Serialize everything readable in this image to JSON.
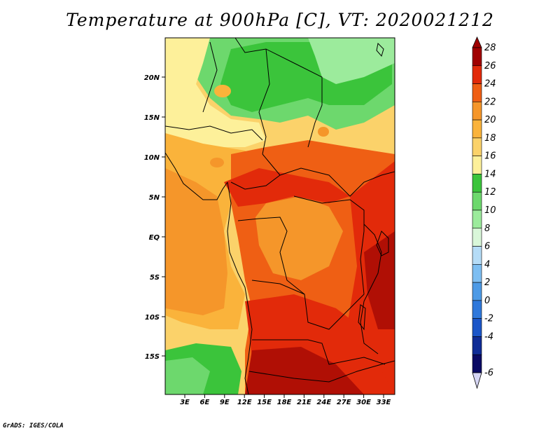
{
  "title": "Temperature at 900hPa [C], VT: 2020021212",
  "credit": "GrADS: IGES/COLA",
  "lat_labels": [
    "20N",
    "15N",
    "10N",
    "5N",
    "EQ",
    "5S",
    "10S",
    "15S"
  ],
  "lon_labels": [
    "3E",
    "6E",
    "9E",
    "12E",
    "15E",
    "18E",
    "21E",
    "24E",
    "27E",
    "30E",
    "33E"
  ],
  "colorbar": {
    "levels": [
      "28",
      "26",
      "24",
      "22",
      "20",
      "18",
      "16",
      "14",
      "12",
      "10",
      "8",
      "6",
      "4",
      "2",
      "0",
      "-2",
      "-4",
      "-6"
    ],
    "colors": [
      "#a00000",
      "#e22a0a",
      "#ef5f14",
      "#f5962a",
      "#fab33b",
      "#fbd26a",
      "#fdf09a",
      "#3bc43b",
      "#6dd86d",
      "#9ceb9c",
      "#d9f7d9",
      "#b5dcf7",
      "#7dbef2",
      "#4d9ae6",
      "#2f78db",
      "#1a55c8",
      "#0f2c96",
      "#0a0a64"
    ],
    "under_color": "#d6d6f5"
  },
  "map_colors": {
    "c28": "#b00f05",
    "c26": "#e22a0a",
    "c24": "#ef5f14",
    "c22": "#f5962a",
    "c20": "#fab33b",
    "c18": "#fbd26a",
    "c16": "#fdf09a",
    "c14": "#3bc43b",
    "c12": "#6dd86d",
    "c10": "#9ceb9c"
  }
}
